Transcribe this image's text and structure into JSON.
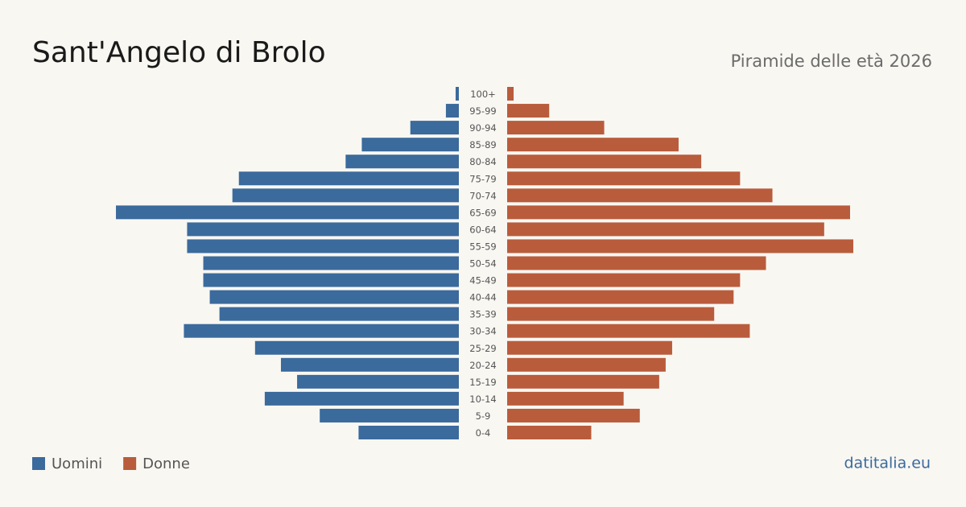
{
  "chart_data": {
    "type": "pyramid",
    "title": "Sant'Angelo di Brolo",
    "subtitle": "Piramide delle età 2026",
    "source": "datitalia.eu",
    "categories": [
      "100+",
      "95-99",
      "90-94",
      "85-89",
      "80-84",
      "75-79",
      "70-74",
      "65-69",
      "60-64",
      "55-59",
      "50-54",
      "45-49",
      "40-44",
      "35-39",
      "30-34",
      "25-29",
      "20-24",
      "15-19",
      "10-14",
      "5-9",
      "0-4"
    ],
    "series": [
      {
        "name": "Uomini",
        "color": "#3b6a9c",
        "values": [
          1,
          4,
          15,
          30,
          35,
          68,
          70,
          106,
          84,
          84,
          79,
          79,
          77,
          74,
          85,
          63,
          55,
          50,
          60,
          43,
          31
        ]
      },
      {
        "name": "Donne",
        "color": "#b95c3c",
        "values": [
          2,
          13,
          30,
          53,
          60,
          72,
          82,
          106,
          98,
          107,
          80,
          72,
          70,
          64,
          75,
          51,
          49,
          47,
          36,
          41,
          26
        ]
      }
    ]
  }
}
